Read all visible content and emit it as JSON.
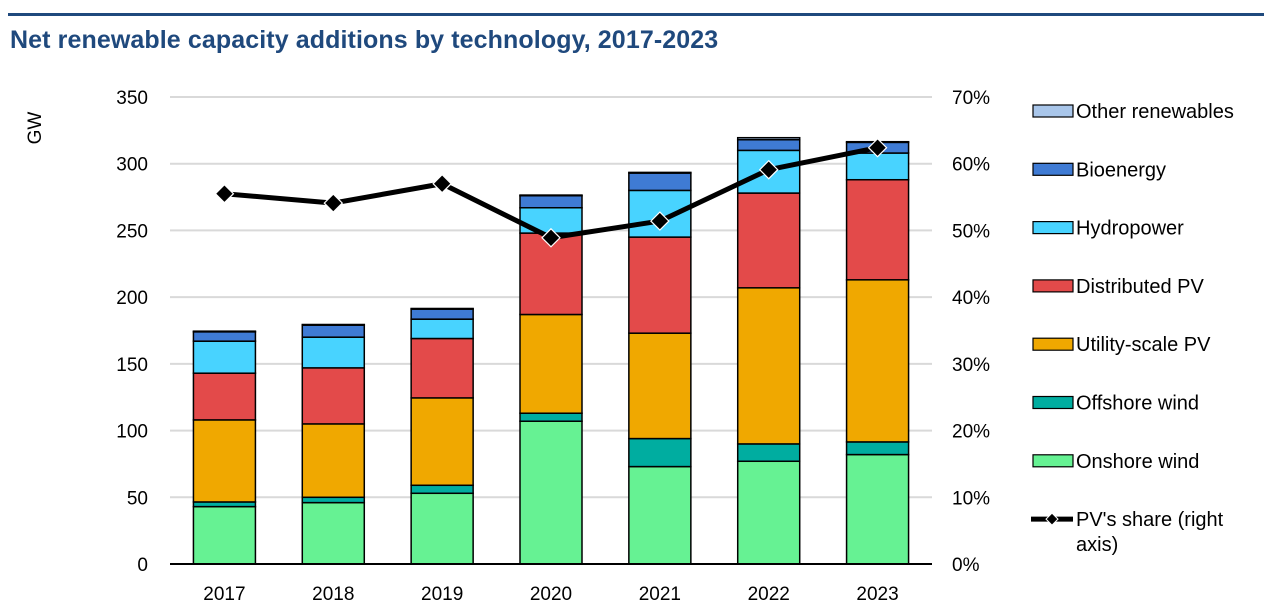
{
  "title": "Net renewable capacity additions by technology, 2017-2023",
  "chart_data": {
    "type": "bar",
    "stacked": true,
    "title": "Net renewable capacity additions by technology, 2017-2023",
    "xlabel": "",
    "ylabel": "GW",
    "y2label": "",
    "categories": [
      "2017",
      "2018",
      "2019",
      "2020",
      "2021",
      "2022",
      "2023"
    ],
    "ylim": [
      0,
      350
    ],
    "yticks": [
      0,
      50,
      100,
      150,
      200,
      250,
      300,
      350
    ],
    "ytick_labels": [
      "0",
      "50",
      "100",
      "150",
      "200",
      "250",
      "300",
      "350"
    ],
    "y2lim": [
      0,
      70
    ],
    "y2ticks": [
      0,
      10,
      20,
      30,
      40,
      50,
      60,
      70
    ],
    "y2tick_labels": [
      "0%",
      "10%",
      "20%",
      "30%",
      "40%",
      "50%",
      "60%",
      "70%"
    ],
    "grid": true,
    "legend_position": "right",
    "series": [
      {
        "name": "Onshore wind",
        "color": "#66f293",
        "values": [
          43,
          46,
          53,
          107,
          73,
          77,
          82
        ]
      },
      {
        "name": "Offshore wind",
        "color": "#00ada0",
        "values": [
          3.5,
          4,
          6,
          6,
          21,
          13,
          9.5
        ]
      },
      {
        "name": "Utility-scale PV",
        "color": "#f0a800",
        "values": [
          61.5,
          55,
          65.5,
          74,
          79,
          117,
          121.5
        ]
      },
      {
        "name": "Distributed PV",
        "color": "#e34a4a",
        "values": [
          35,
          42,
          44.5,
          61,
          72,
          71,
          75
        ]
      },
      {
        "name": "Hydropower",
        "color": "#48d3ff",
        "values": [
          24,
          23,
          14.5,
          19,
          35,
          32,
          20
        ]
      },
      {
        "name": "Bioenergy",
        "color": "#3f7bd4",
        "values": [
          7,
          9,
          7.5,
          9,
          13,
          8,
          8
        ]
      },
      {
        "name": "Other renewables",
        "color": "#a9c6ea",
        "values": [
          0.5,
          0.5,
          0.5,
          0.5,
          0.5,
          1.5,
          0.5
        ]
      }
    ],
    "line_series": {
      "name": "PV's share (right axis)",
      "axis": "right",
      "color": "#000000",
      "marker": "diamond",
      "values": [
        55.5,
        54.1,
        57.0,
        48.9,
        51.4,
        59.1,
        62.4
      ]
    },
    "legend": [
      {
        "label": "Other renewables",
        "color": "#a9c6ea",
        "kind": "box"
      },
      {
        "label": "Bioenergy",
        "color": "#3f7bd4",
        "kind": "box"
      },
      {
        "label": "Hydropower",
        "color": "#48d3ff",
        "kind": "box"
      },
      {
        "label": "Distributed PV",
        "color": "#e34a4a",
        "kind": "box"
      },
      {
        "label": "Utility-scale PV",
        "color": "#f0a800",
        "kind": "box"
      },
      {
        "label": "Offshore wind",
        "color": "#00ada0",
        "kind": "box"
      },
      {
        "label": "Onshore wind",
        "color": "#66f293",
        "kind": "box"
      },
      {
        "label": "PV's share (right",
        "label2": "axis)",
        "color": "#000000",
        "kind": "line"
      }
    ]
  }
}
